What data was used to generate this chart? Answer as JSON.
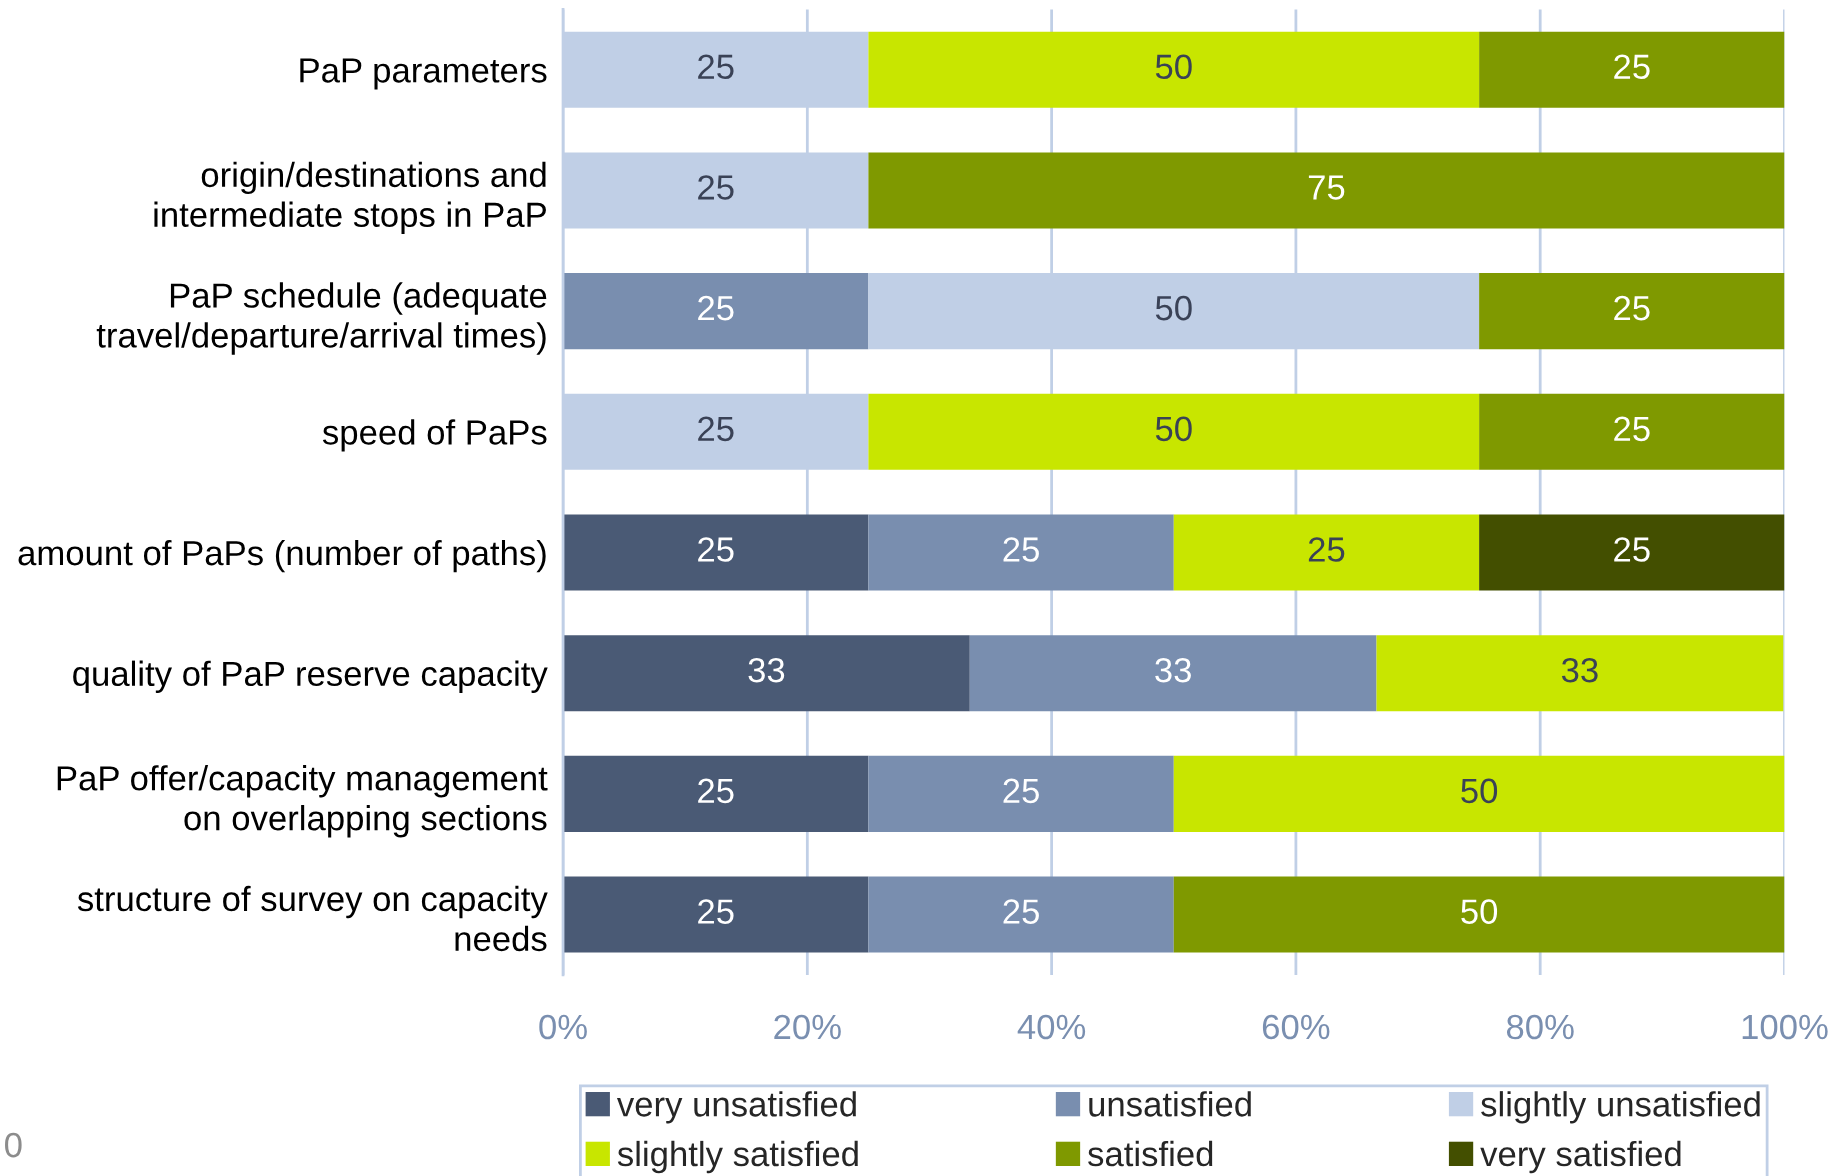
{
  "chart_data": {
    "type": "bar",
    "orientation": "horizontal",
    "stacked": true,
    "categories": [
      "PaP parameters",
      "origin/destinations and\nintermediate stops in PaP",
      "PaP schedule (adequate\ntravel/departure/arrival times)",
      "speed of PaPs",
      "amount of PaPs (number of paths)",
      "quality of PaP reserve capacity",
      "PaP offer/capacity management\non overlapping sections",
      "structure of survey on capacity\nneeds"
    ],
    "series": [
      {
        "name": "very unsatisfied",
        "color": "#4a5a75",
        "values": [
          null,
          null,
          null,
          null,
          25,
          33.3,
          25,
          25
        ],
        "value_labels": [
          null,
          null,
          null,
          null,
          "25",
          "33",
          "25",
          "25"
        ]
      },
      {
        "name": "unsatisfied",
        "color": "#798eaf",
        "values": [
          null,
          null,
          25,
          null,
          25,
          33.3,
          25,
          25
        ],
        "value_labels": [
          null,
          null,
          "25",
          null,
          "25",
          "33",
          "25",
          "25"
        ]
      },
      {
        "name": "slightly unsatisfied",
        "color": "#c0cfe6",
        "values": [
          25,
          25,
          50,
          25,
          null,
          null,
          null,
          null
        ],
        "value_labels": [
          "25",
          "25",
          "50",
          "25",
          null,
          null,
          null,
          null
        ]
      },
      {
        "name": "slightly satisfied",
        "color": "#c8e600",
        "values": [
          50,
          null,
          null,
          50,
          25,
          33.3,
          50,
          null
        ],
        "value_labels": [
          "50",
          null,
          null,
          "50",
          "25",
          "33",
          "50",
          null
        ]
      },
      {
        "name": "satisfied",
        "color": "#7f9900",
        "values": [
          25,
          75,
          25,
          25,
          null,
          null,
          null,
          50
        ],
        "value_labels": [
          "25",
          "75",
          "25",
          "25",
          null,
          null,
          null,
          "50"
        ]
      },
      {
        "name": "very satisfied",
        "color": "#434f00",
        "values": [
          null,
          null,
          null,
          null,
          25,
          null,
          null,
          null
        ],
        "value_labels": [
          null,
          null,
          null,
          null,
          "25",
          null,
          null,
          null
        ]
      }
    ],
    "xlim": [
      0,
      100
    ],
    "xticks": [
      {
        "value": 0,
        "label": "0%"
      },
      {
        "value": 20,
        "label": "20%"
      },
      {
        "value": 40,
        "label": "40%"
      },
      {
        "value": 60,
        "label": "60%"
      },
      {
        "value": 80,
        "label": "80%"
      },
      {
        "value": 100,
        "label": "100%"
      }
    ],
    "grid": "x",
    "legend": "bottom",
    "annotations": [
      "0"
    ]
  }
}
